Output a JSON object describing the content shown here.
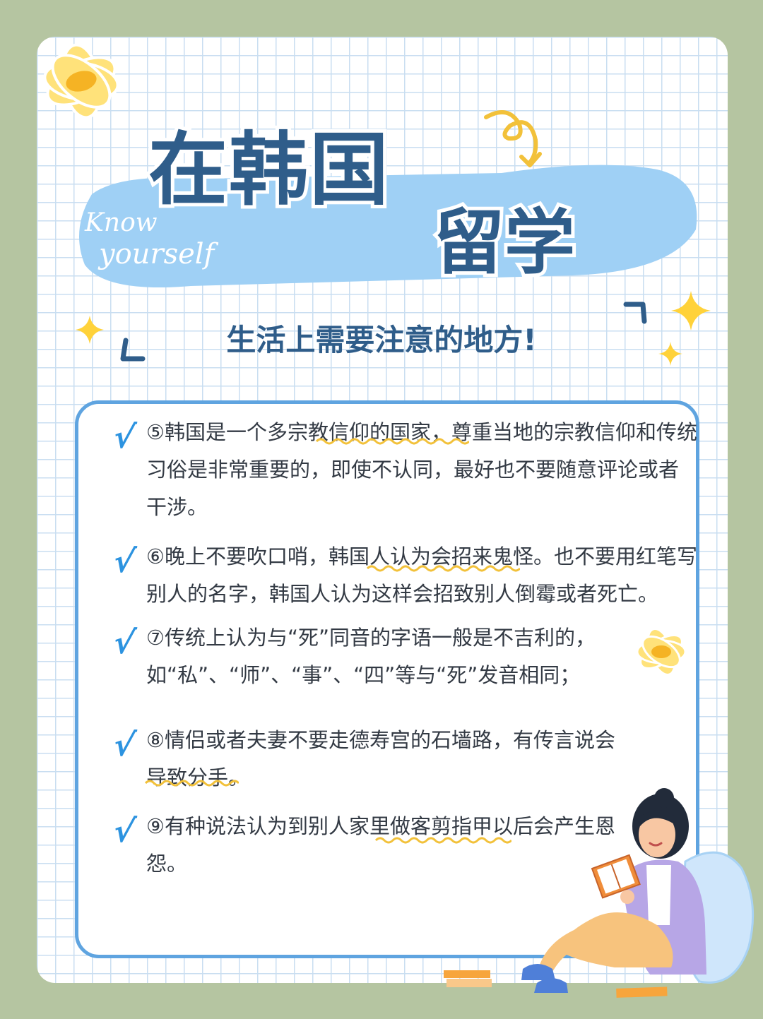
{
  "title": {
    "line1": "在韩国",
    "line2": "留学"
  },
  "script_text": {
    "line1": "Know",
    "line2": "yourself"
  },
  "subtitle": "生活上需要注意的地方!",
  "tips": [
    {
      "id": "tip-5",
      "check": "√",
      "text": "⑤韩国是一个多宗教信仰的国家，尊重当地的宗教信仰和传统习俗是非常重要的，即使不认同，最好也不要随意评论或者干涉。"
    },
    {
      "id": "tip-6",
      "check": "√",
      "text": "⑥晚上不要吹口哨，韩国人认为会招来鬼怪。也不要用红笔写别人的名字，韩国人认为这样会招致别人倒霉或者死亡。"
    },
    {
      "id": "tip-7",
      "check": "√",
      "text": "⑦传统上认为与“死”同音的字语一般是不吉利的，如“私”、“师”、“事”、“四”等与“死”发音相同；"
    },
    {
      "id": "tip-8",
      "check": "√",
      "text": "⑧情侣或者夫妻不要走德寿宫的石墙路，有传言说会导致分手。"
    },
    {
      "id": "tip-9",
      "check": "√",
      "text": "⑨有种说法认为到别人家里做客剪指甲以后会产生恩怨。"
    }
  ],
  "colors": {
    "background": "#b5c5a1",
    "grid": "#c9def1",
    "title": "#2f5d8a",
    "card_border": "#5fa4e0",
    "check": "#2c93e0",
    "wavy": "#f2c13a",
    "blob": "#9fd0f5"
  },
  "icons": [
    "flower-icon",
    "star-icon",
    "arrow-icon",
    "reading-girl-illustration",
    "book-icon"
  ]
}
